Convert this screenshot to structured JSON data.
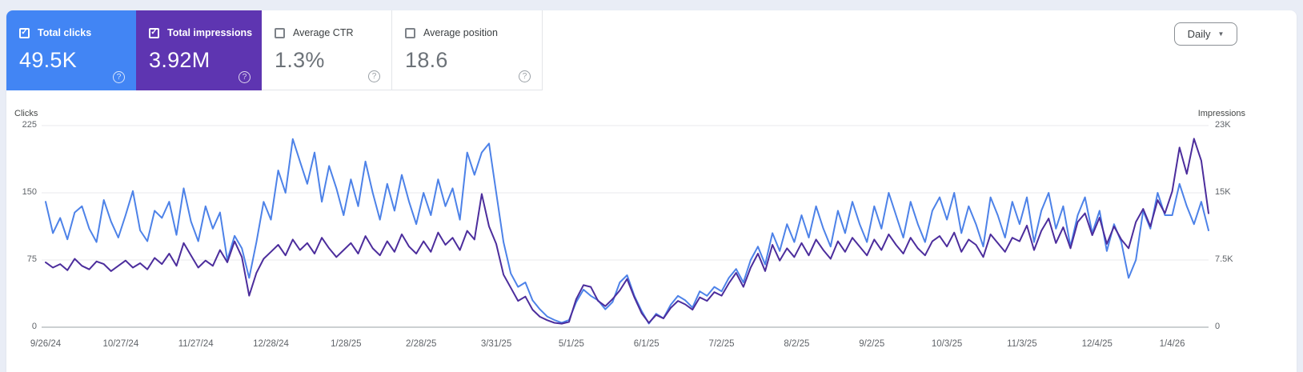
{
  "colors": {
    "page_background": "#e9edf6",
    "clicks_accent": "#4285f4",
    "impressions_accent": "#5e35b1",
    "clicks_line": "#4d82e8",
    "impressions_line": "#4c2d9c"
  },
  "icons": {
    "help_glyph": "?",
    "caret_down_glyph": "▼"
  },
  "granularity": {
    "label": "Daily"
  },
  "cards": [
    {
      "label": "Total clicks",
      "value": "49.5K",
      "checked": true,
      "check_glyph": "✓",
      "bg": "#4285f4"
    },
    {
      "label": "Total impressions",
      "value": "3.92M",
      "checked": true,
      "check_glyph": "✓",
      "bg": "#5e35b1"
    },
    {
      "label": "Average CTR",
      "value": "1.3%",
      "checked": false,
      "check_glyph": "",
      "bg": "#ffffff"
    },
    {
      "label": "Average position",
      "value": "18.6",
      "checked": false,
      "check_glyph": "",
      "bg": "#ffffff"
    }
  ],
  "chart_data": {
    "type": "line",
    "grid": true,
    "y_axis_left": {
      "title": "Clicks",
      "max": 225,
      "ticks": [
        "225",
        "150",
        "75",
        "0"
      ],
      "tick_values": [
        225,
        150,
        75,
        0
      ]
    },
    "y_axis_right": {
      "title": "Impressions",
      "max": 23,
      "ticks": [
        "23K",
        "15K",
        "7.5K",
        "0"
      ],
      "tick_values": [
        23,
        15,
        7.5,
        0
      ]
    },
    "x_axis": {
      "total_days": 480,
      "ticks": [
        {
          "label": "9/26/24",
          "day": 0
        },
        {
          "label": "10/27/24",
          "day": 31
        },
        {
          "label": "11/27/24",
          "day": 62
        },
        {
          "label": "12/28/24",
          "day": 93
        },
        {
          "label": "1/28/25",
          "day": 124
        },
        {
          "label": "2/28/25",
          "day": 155
        },
        {
          "label": "3/31/25",
          "day": 186
        },
        {
          "label": "5/1/25",
          "day": 217
        },
        {
          "label": "6/1/25",
          "day": 248
        },
        {
          "label": "7/2/25",
          "day": 279
        },
        {
          "label": "8/2/25",
          "day": 310
        },
        {
          "label": "9/2/25",
          "day": 341
        },
        {
          "label": "10/3/25",
          "day": 372
        },
        {
          "label": "11/3/25",
          "day": 403
        },
        {
          "label": "12/4/25",
          "day": 434
        },
        {
          "label": "1/4/26",
          "day": 465
        }
      ]
    },
    "series": [
      {
        "name": "Clicks",
        "axis": "left",
        "unit": "clicks",
        "color": "#4d82e8",
        "values": [
          140,
          105,
          122,
          98,
          128,
          135,
          110,
          95,
          142,
          118,
          100,
          125,
          152,
          108,
          96,
          130,
          122,
          140,
          103,
          155,
          118,
          96,
          135,
          110,
          128,
          75,
          102,
          88,
          55,
          95,
          140,
          120,
          175,
          150,
          210,
          185,
          160,
          195,
          140,
          180,
          155,
          125,
          165,
          135,
          185,
          150,
          120,
          160,
          130,
          170,
          140,
          115,
          150,
          125,
          165,
          135,
          155,
          120,
          195,
          170,
          195,
          205,
          150,
          95,
          60,
          45,
          50,
          30,
          20,
          12,
          8,
          5,
          8,
          28,
          42,
          35,
          30,
          20,
          28,
          50,
          58,
          35,
          18,
          4,
          15,
          10,
          25,
          35,
          30,
          22,
          40,
          35,
          45,
          40,
          55,
          65,
          50,
          75,
          90,
          70,
          105,
          85,
          115,
          95,
          125,
          100,
          135,
          110,
          90,
          130,
          105,
          140,
          115,
          95,
          135,
          110,
          150,
          125,
          100,
          140,
          115,
          95,
          130,
          145,
          120,
          150,
          105,
          135,
          115,
          90,
          145,
          125,
          100,
          140,
          115,
          145,
          95,
          130,
          150,
          110,
          135,
          90,
          125,
          145,
          105,
          130,
          85,
          115,
          95,
          55,
          75,
          130,
          110,
          150,
          125,
          125,
          160,
          135,
          115,
          140,
          108
        ]
      },
      {
        "name": "Impressions",
        "axis": "right",
        "unit": "thousands",
        "color": "#4c2d9c",
        "values": [
          7.4,
          6.8,
          7.2,
          6.5,
          7.8,
          7.0,
          6.6,
          7.5,
          7.2,
          6.4,
          7.0,
          7.6,
          6.8,
          7.3,
          6.6,
          7.9,
          7.2,
          8.4,
          7.0,
          9.6,
          8.2,
          6.8,
          7.6,
          7.0,
          8.8,
          7.4,
          9.8,
          8.0,
          3.6,
          6.2,
          7.8,
          8.6,
          9.4,
          8.2,
          10.0,
          8.8,
          9.6,
          8.4,
          10.2,
          9.0,
          8.0,
          8.8,
          9.6,
          8.4,
          10.4,
          9.0,
          8.2,
          9.8,
          8.6,
          10.6,
          9.2,
          8.4,
          9.8,
          8.6,
          10.8,
          9.4,
          10.2,
          8.8,
          11.0,
          10.0,
          15.2,
          11.5,
          9.5,
          6.0,
          4.5,
          3.0,
          3.5,
          2.0,
          1.2,
          0.8,
          0.5,
          0.4,
          0.6,
          3.2,
          4.8,
          4.6,
          3.0,
          2.4,
          3.2,
          4.2,
          5.5,
          3.4,
          1.6,
          0.5,
          1.4,
          1.0,
          2.2,
          3.0,
          2.6,
          2.0,
          3.4,
          3.0,
          4.0,
          3.6,
          5.0,
          6.2,
          4.6,
          6.8,
          8.4,
          6.4,
          9.4,
          7.6,
          9.0,
          8.0,
          9.6,
          8.2,
          10.0,
          8.8,
          7.8,
          9.8,
          8.6,
          10.2,
          9.2,
          8.2,
          10.0,
          8.8,
          10.6,
          9.4,
          8.4,
          10.2,
          9.0,
          8.2,
          9.8,
          10.4,
          9.2,
          10.8,
          8.6,
          10.0,
          9.4,
          8.0,
          10.6,
          9.6,
          8.6,
          10.2,
          9.8,
          11.6,
          8.8,
          11.0,
          12.4,
          9.6,
          11.4,
          9.0,
          12.0,
          13.0,
          10.5,
          12.5,
          9.5,
          11.5,
          10.0,
          9.0,
          12.0,
          13.5,
          11.5,
          14.5,
          13.0,
          15.5,
          20.5,
          17.5,
          21.5,
          19.0,
          13.0
        ]
      }
    ]
  }
}
